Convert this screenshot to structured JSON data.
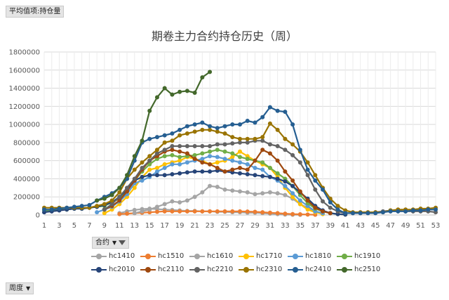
{
  "pivot": {
    "value_button": "平均值项:持仓量",
    "column_button": "合约",
    "row_button": "周度"
  },
  "chart_data": {
    "type": "line",
    "title": "期卷主力合约持仓历史（周）",
    "ylim": [
      0,
      1800000
    ],
    "yticks": [
      "0",
      "200000",
      "400000",
      "600000",
      "800000",
      "1000000",
      "1200000",
      "1400000",
      "1600000",
      "1800000"
    ],
    "xticks": [
      "1",
      "3",
      "5",
      "7",
      "9",
      "11",
      "13",
      "15",
      "17",
      "19",
      "21",
      "23",
      "25",
      "27",
      "29",
      "31",
      "33",
      "35",
      "37",
      "39",
      "41",
      "43",
      "45",
      "47",
      "49",
      "51",
      "53"
    ],
    "grid": true,
    "legend_position": "bottom",
    "x": [
      1,
      2,
      3,
      4,
      5,
      6,
      7,
      8,
      9,
      10,
      11,
      12,
      13,
      14,
      15,
      16,
      17,
      18,
      19,
      20,
      21,
      22,
      23,
      24,
      25,
      26,
      27,
      28,
      29,
      30,
      31,
      32,
      33,
      34,
      35,
      36,
      37,
      38,
      39,
      40,
      41,
      42,
      43,
      44,
      45,
      46,
      47,
      48,
      49,
      50,
      51,
      52,
      53
    ],
    "series": [
      {
        "name": "hc1410",
        "color": "#a5a5a5",
        "values": [
          null,
          null,
          null,
          null,
          null,
          null,
          null,
          null,
          null,
          null,
          20000,
          40000,
          55000,
          65000,
          70000,
          65000,
          60000,
          55000,
          50000,
          45000,
          45000,
          40000,
          40000,
          35000,
          35000,
          30000,
          30000,
          25000,
          25000,
          20000,
          15000,
          10000,
          5000,
          3000,
          2000,
          null,
          null,
          null,
          null,
          null,
          null,
          null,
          null,
          null,
          null,
          null,
          null,
          null,
          null,
          null,
          null,
          null,
          null
        ]
      },
      {
        "name": "hc1510",
        "color": "#ed7d31",
        "values": [
          null,
          null,
          null,
          null,
          null,
          null,
          null,
          null,
          null,
          null,
          10000,
          15000,
          20000,
          25000,
          30000,
          35000,
          40000,
          40000,
          40000,
          40000,
          40000,
          40000,
          40000,
          40000,
          40000,
          40000,
          40000,
          38000,
          35000,
          30000,
          25000,
          20000,
          15000,
          10000,
          8000,
          5000,
          3000,
          null,
          null,
          null,
          null,
          null,
          null,
          null,
          null,
          null,
          null,
          null,
          null,
          null,
          null,
          null,
          null
        ]
      },
      {
        "name": "hc1610",
        "color": "#a5a5a5",
        "values": [
          null,
          null,
          null,
          null,
          null,
          null,
          null,
          null,
          null,
          null,
          null,
          null,
          20000,
          40000,
          60000,
          90000,
          120000,
          150000,
          140000,
          160000,
          200000,
          250000,
          320000,
          310000,
          280000,
          270000,
          260000,
          250000,
          230000,
          240000,
          250000,
          240000,
          220000,
          180000,
          120000,
          80000,
          40000,
          20000,
          null,
          null,
          null,
          null,
          null,
          null,
          null,
          null,
          null,
          null,
          null,
          null,
          null,
          null,
          null
        ]
      },
      {
        "name": "hc1710",
        "color": "#ffc000",
        "values": [
          null,
          null,
          null,
          null,
          null,
          null,
          null,
          null,
          20000,
          60000,
          120000,
          200000,
          300000,
          420000,
          500000,
          520000,
          560000,
          580000,
          600000,
          640000,
          620000,
          600000,
          560000,
          580000,
          600000,
          640000,
          700000,
          650000,
          600000,
          560000,
          520000,
          420000,
          300000,
          200000,
          120000,
          60000,
          30000,
          10000,
          null,
          null,
          null,
          null,
          null,
          null,
          null,
          null,
          null,
          null,
          null,
          null,
          null,
          null,
          null
        ]
      },
      {
        "name": "hc1810",
        "color": "#5b9bd5",
        "values": [
          null,
          null,
          null,
          null,
          null,
          null,
          null,
          30000,
          60000,
          90000,
          150000,
          230000,
          350000,
          380000,
          420000,
          480000,
          520000,
          560000,
          560000,
          580000,
          600000,
          620000,
          650000,
          640000,
          620000,
          600000,
          580000,
          560000,
          520000,
          500000,
          420000,
          380000,
          320000,
          240000,
          160000,
          100000,
          40000,
          20000,
          null,
          null,
          null,
          null,
          null,
          null,
          null,
          null,
          null,
          null,
          null,
          null,
          null,
          null,
          null
        ]
      },
      {
        "name": "hc1910",
        "color": "#70ad47",
        "values": [
          50000,
          50000,
          60000,
          60000,
          70000,
          70000,
          80000,
          90000,
          100000,
          140000,
          180000,
          280000,
          380000,
          480000,
          560000,
          620000,
          650000,
          660000,
          640000,
          650000,
          660000,
          680000,
          700000,
          720000,
          700000,
          680000,
          640000,
          620000,
          600000,
          580000,
          520000,
          460000,
          400000,
          320000,
          220000,
          130000,
          70000,
          40000,
          20000,
          10000,
          5000,
          null,
          null,
          null,
          null,
          null,
          null,
          null,
          null,
          null,
          null,
          null,
          null
        ]
      },
      {
        "name": "hc2010",
        "color": "#264478",
        "values": [
          30000,
          40000,
          50000,
          60000,
          70000,
          70000,
          80000,
          90000,
          110000,
          140000,
          200000,
          280000,
          380000,
          420000,
          440000,
          440000,
          440000,
          450000,
          460000,
          470000,
          480000,
          480000,
          480000,
          490000,
          480000,
          470000,
          460000,
          450000,
          440000,
          430000,
          420000,
          400000,
          370000,
          320000,
          250000,
          180000,
          100000,
          50000,
          20000,
          10000,
          5000,
          null,
          null,
          null,
          null,
          null,
          null,
          null,
          null,
          null,
          null,
          null,
          null
        ]
      },
      {
        "name": "hc2110",
        "color": "#9e480e",
        "values": [
          null,
          null,
          null,
          null,
          null,
          null,
          null,
          null,
          60000,
          100000,
          160000,
          260000,
          380000,
          500000,
          600000,
          650000,
          700000,
          720000,
          700000,
          680000,
          620000,
          580000,
          560000,
          520000,
          480000,
          500000,
          520000,
          500000,
          600000,
          720000,
          680000,
          600000,
          480000,
          380000,
          260000,
          160000,
          80000,
          40000,
          20000,
          null,
          null,
          null,
          null,
          null,
          null,
          null,
          null,
          null,
          null,
          null,
          null,
          null,
          null
        ]
      },
      {
        "name": "hc2210",
        "color": "#636363",
        "values": [
          null,
          null,
          null,
          null,
          null,
          null,
          null,
          null,
          60000,
          120000,
          200000,
          300000,
          400000,
          520000,
          600000,
          680000,
          720000,
          760000,
          760000,
          760000,
          760000,
          760000,
          760000,
          780000,
          780000,
          790000,
          800000,
          800000,
          820000,
          820000,
          780000,
          760000,
          720000,
          660000,
          580000,
          440000,
          280000,
          150000,
          80000,
          40000,
          20000,
          20000,
          20000,
          20000,
          30000,
          40000,
          50000,
          50000,
          40000,
          40000,
          40000,
          40000,
          30000
        ]
      },
      {
        "name": "hc2310",
        "color": "#997300",
        "values": [
          80000,
          80000,
          80000,
          80000,
          80000,
          80000,
          80000,
          100000,
          120000,
          160000,
          250000,
          400000,
          500000,
          580000,
          650000,
          720000,
          800000,
          820000,
          880000,
          900000,
          920000,
          940000,
          940000,
          920000,
          900000,
          860000,
          840000,
          840000,
          840000,
          860000,
          1010000,
          940000,
          840000,
          780000,
          700000,
          580000,
          440000,
          300000,
          180000,
          100000,
          50000,
          30000,
          30000,
          30000,
          30000,
          30000,
          50000,
          60000,
          60000,
          60000,
          70000,
          70000,
          80000
        ]
      },
      {
        "name": "hc2410",
        "color": "#255e91",
        "values": [
          60000,
          60000,
          70000,
          80000,
          90000,
          100000,
          110000,
          160000,
          200000,
          240000,
          300000,
          400000,
          600000,
          800000,
          840000,
          860000,
          880000,
          900000,
          940000,
          980000,
          1000000,
          1020000,
          980000,
          960000,
          980000,
          1000000,
          1000000,
          1040000,
          1020000,
          1080000,
          1190000,
          1150000,
          1140000,
          1000000,
          720000,
          500000,
          380000,
          280000,
          140000,
          60000,
          20000,
          20000,
          20000,
          20000,
          20000,
          30000,
          40000,
          40000,
          40000,
          50000,
          50000,
          60000,
          60000
        ]
      },
      {
        "name": "hc2510",
        "color": "#43682b",
        "values": [
          null,
          null,
          null,
          null,
          null,
          null,
          null,
          160000,
          180000,
          220000,
          300000,
          440000,
          650000,
          820000,
          1150000,
          1300000,
          1400000,
          1330000,
          1360000,
          1370000,
          1350000,
          1520000,
          1580000,
          null,
          null,
          null,
          null,
          null,
          null,
          null,
          null,
          null,
          null,
          null,
          null,
          null,
          null,
          null,
          null,
          null,
          null,
          null,
          null,
          null,
          null,
          null,
          null,
          null,
          null,
          null,
          null,
          null,
          null
        ]
      }
    ]
  }
}
